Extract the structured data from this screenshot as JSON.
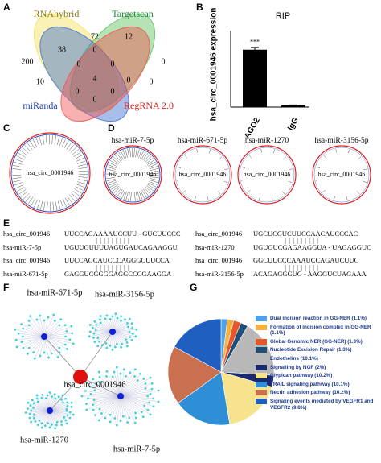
{
  "panel_labels": [
    "A",
    "B",
    "C",
    "D",
    "E",
    "F",
    "G"
  ],
  "venn": {
    "sets": [
      "RNAhybrid",
      "Targetscan",
      "miRanda",
      "RegRNA 2.0"
    ],
    "counts": [
      72,
      12,
      38,
      0,
      200,
      0,
      0,
      0,
      10,
      4,
      0,
      0,
      0,
      0,
      0
    ]
  },
  "circle_plots": {
    "C": {
      "center": "hsa_circ_0001946"
    },
    "D": [
      {
        "title": "hsa-miR-7-5p",
        "center": "hsa_circ_0001946"
      },
      {
        "title": "hsa-miR-671-5p",
        "center": "hsa_circ_0001946"
      },
      {
        "title": "hsa-miR-1270",
        "center": "hsa_circ_0001946"
      },
      {
        "title": "hsa-miR-3156-5p",
        "center": "hsa_circ_0001946"
      }
    ]
  },
  "alignments": [
    {
      "circ": "hsa_circ_001946",
      "circ_seq": "UUCCAGAAAAUCCUU - GUCUUCCC",
      "mir": "hsa-miR-7-5p",
      "mir_seq": "UGUUGUUUUAGUGAUCAGAAGGU"
    },
    {
      "circ": "hsa_circ_001946",
      "circ_seq": "UGCUCGUCUUCCAACAUCCCAC",
      "mir": "hsa-miR-1270",
      "mir_seq": "UGUGUCGAGAAGGUA - UAGAGGUC"
    },
    {
      "circ": "hsa_circ_001946",
      "circ_seq": "UUCCAGCAUCCCAGGGCUUCCA",
      "mir": "hsa-miR-671-5p",
      "mir_seq": "GAGGUCGGGGAGGCCCGAAGGA"
    },
    {
      "circ": "hsa_circ_001946",
      "circ_seq": "GGCUUCCCAAAUCCAGAUCUUC",
      "mir": "hsa-miR-3156-5p",
      "mir_seq": "ACAGAGGGUG - AAGGUCUAGAAA"
    }
  ],
  "network": {
    "hub": "hsa_circ_0001946",
    "nodes": [
      "hsa-miR-671-5p",
      "hsa-miR-3156-5p",
      "hsa-miR-1270",
      "hsa-miR-7-5p"
    ]
  },
  "chart_data": [
    {
      "type": "bar",
      "title": "RIP",
      "y_label": "hsa_circ_0001946 expression",
      "categories": [
        "AGO2",
        "IgG"
      ],
      "values": [
        0.3,
        0.01
      ],
      "errors": [
        0.012,
        0.001
      ],
      "annotation": "***",
      "ylim": [
        0,
        0.4
      ],
      "color": "#000000"
    },
    {
      "type": "pie",
      "labels": [
        "Dual incision reaction in GG-NER (1.1%)",
        "Formation of incision complex in GG-NER (1.1%)",
        "Global Genomic NER (GG-NER) (1.3%)",
        "Nucleotide Excision Repair (1.3%)",
        "Endothelins (10.1%)",
        "Signalling by NGF (2%)",
        "Glypican pathway (10.2%)",
        "TRAIL signaling pathway (10.1%)",
        "Nectin adhesion pathway (10.2%)",
        "Signaling events mediated by VEGFR1 and VEGFR2 (9.8%)"
      ],
      "values": [
        1.1,
        1.1,
        1.3,
        1.3,
        10.1,
        2,
        10.2,
        10.1,
        10.2,
        9.8
      ],
      "colors": [
        "#4ea0e8",
        "#f5b040",
        "#e8572a",
        "#1f4e79",
        "#b8b8b8",
        "#1a2a6e",
        "#f7e28e",
        "#2e8fd6",
        "#c87050",
        "#1f5fbf"
      ]
    }
  ]
}
